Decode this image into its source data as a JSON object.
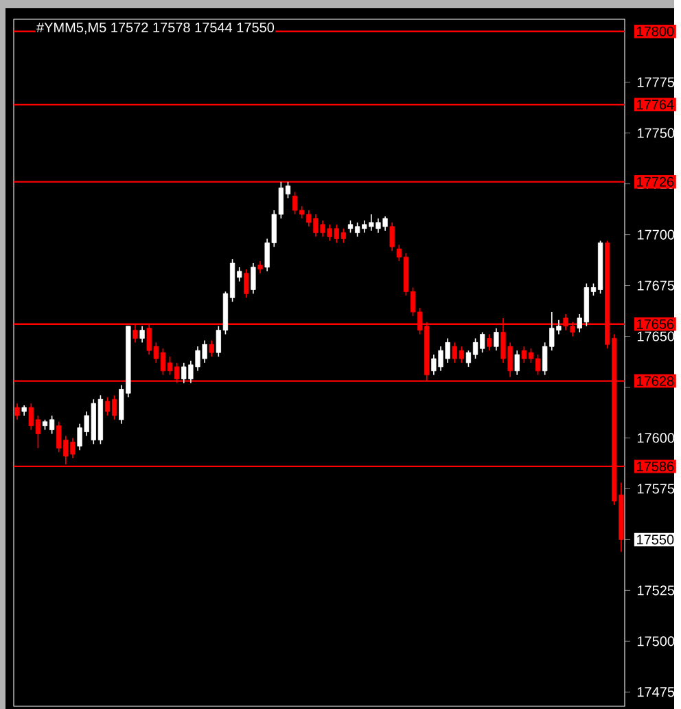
{
  "chart_data": {
    "type": "candlestick",
    "title": "#YMM5,M5  17572 17578 17544 17550",
    "categories": [
      null,
      null,
      null,
      null,
      null,
      null,
      null,
      null,
      null,
      null,
      null,
      null,
      null,
      null,
      null,
      null,
      null,
      null,
      null,
      null,
      null,
      null,
      null,
      null,
      null,
      null,
      null,
      null,
      null,
      null,
      null,
      null,
      null,
      null,
      null,
      null,
      null,
      null,
      null,
      null,
      null,
      null,
      null,
      null,
      null,
      null,
      null,
      null,
      null,
      null,
      null,
      null,
      null,
      null,
      null,
      null,
      null,
      null,
      null,
      null,
      null,
      null,
      null,
      null,
      null,
      null,
      null,
      null,
      null,
      null,
      null,
      null,
      null,
      null,
      null,
      null,
      null,
      null,
      null,
      null,
      null,
      null,
      null,
      null,
      null,
      null,
      null,
      null
    ],
    "ohlc": [
      [
        17615,
        17617,
        17609,
        17611
      ],
      [
        17613,
        17616,
        17611,
        17615
      ],
      [
        17615,
        17617,
        17604,
        17606
      ],
      [
        17609,
        17611,
        17595,
        17602
      ],
      [
        17606,
        17609,
        17604,
        17608
      ],
      [
        17604,
        17611,
        17602,
        17609
      ],
      [
        17606,
        17608,
        17593,
        17595
      ],
      [
        17599,
        17601,
        17587,
        17591
      ],
      [
        17598,
        17600,
        17590,
        17592
      ],
      [
        17596,
        17607,
        17594,
        17605
      ],
      [
        17603,
        17613,
        17601,
        17611
      ],
      [
        17599,
        17619,
        17597,
        17617
      ],
      [
        17599,
        17621,
        17597,
        17619
      ],
      [
        17618,
        17620,
        17611,
        17613
      ],
      [
        17619,
        17621,
        17609,
        17611
      ],
      [
        17609,
        17626,
        17607,
        17624
      ],
      [
        17622,
        17655,
        17620,
        17655
      ],
      [
        17653,
        17656,
        17647,
        17649
      ],
      [
        17649,
        17655,
        17647,
        17653
      ],
      [
        17654,
        17656,
        17641,
        17643
      ],
      [
        17645,
        17647,
        17637,
        17639
      ],
      [
        17642,
        17644,
        17631,
        17633
      ],
      [
        17637,
        17640,
        17631,
        17633
      ],
      [
        17635,
        17637,
        17627,
        17629
      ],
      [
        17629,
        17637,
        17627,
        17635
      ],
      [
        17629,
        17638,
        17627,
        17636
      ],
      [
        17635,
        17645,
        17633,
        17643
      ],
      [
        17639,
        17648,
        17637,
        17646
      ],
      [
        17646,
        17648,
        17640,
        17642
      ],
      [
        17642,
        17655,
        17640,
        17653
      ],
      [
        17653,
        17672,
        17651,
        17671
      ],
      [
        17669,
        17688,
        17667,
        17686
      ],
      [
        17679,
        17684,
        17677,
        17682
      ],
      [
        17681,
        17683,
        17669,
        17671
      ],
      [
        17673,
        17686,
        17671,
        17684
      ],
      [
        17685,
        17687,
        17681,
        17683
      ],
      [
        17684,
        17698,
        17682,
        17696
      ],
      [
        17696,
        17712,
        17694,
        17710
      ],
      [
        17710,
        17726,
        17708,
        17723
      ],
      [
        17720,
        17726,
        17718,
        17724
      ],
      [
        17719,
        17721,
        17710,
        17712
      ],
      [
        17712,
        17714,
        17708,
        17710
      ],
      [
        17710,
        17712,
        17704,
        17706
      ],
      [
        17708,
        17710,
        17699,
        17701
      ],
      [
        17705,
        17707,
        17699,
        17701
      ],
      [
        17703,
        17705,
        17697,
        17699
      ],
      [
        17703,
        17705,
        17696,
        17698
      ],
      [
        17701,
        17703,
        17696,
        17698
      ],
      [
        17703,
        17707,
        17701,
        17705
      ],
      [
        17701,
        17706,
        17699,
        17704
      ],
      [
        17703,
        17707,
        17701,
        17705
      ],
      [
        17704,
        17710,
        17702,
        17706
      ],
      [
        17703,
        17708,
        17701,
        17706
      ],
      [
        17704,
        17709,
        17702,
        17708
      ],
      [
        17704,
        17706,
        17692,
        17694
      ],
      [
        17693,
        17695,
        17687,
        17689
      ],
      [
        17689,
        17691,
        17670,
        17672
      ],
      [
        17672,
        17674,
        17660,
        17662
      ],
      [
        17662,
        17664,
        17651,
        17653
      ],
      [
        17655,
        17657,
        17628,
        17631
      ],
      [
        17633,
        17641,
        17631,
        17639
      ],
      [
        17635,
        17645,
        17633,
        17643
      ],
      [
        17639,
        17649,
        17637,
        17647
      ],
      [
        17645,
        17647,
        17637,
        17639
      ],
      [
        17643,
        17645,
        17637,
        17639
      ],
      [
        17637,
        17643,
        17635,
        17642
      ],
      [
        17641,
        17649,
        17639,
        17647
      ],
      [
        17644,
        17652,
        17642,
        17651
      ],
      [
        17649,
        17651,
        17643,
        17645
      ],
      [
        17645,
        17654,
        17643,
        17652
      ],
      [
        17652,
        17659,
        17637,
        17639
      ],
      [
        17645,
        17647,
        17630,
        17633
      ],
      [
        17633,
        17643,
        17631,
        17641
      ],
      [
        17643,
        17645,
        17637,
        17639
      ],
      [
        17642,
        17644,
        17637,
        17639
      ],
      [
        17639,
        17641,
        17631,
        17633
      ],
      [
        17633,
        17647,
        17631,
        17645
      ],
      [
        17645,
        17662,
        17643,
        17654
      ],
      [
        17653,
        17658,
        17651,
        17655
      ],
      [
        17659,
        17661,
        17653,
        17655
      ],
      [
        17655,
        17657,
        17650,
        17652
      ],
      [
        17654,
        17661,
        17652,
        17659
      ],
      [
        17657,
        17676,
        17655,
        17674
      ],
      [
        17672,
        17676,
        17670,
        17674
      ],
      [
        17673,
        17697,
        17671,
        17696
      ],
      [
        17696,
        17697,
        17644,
        17646
      ],
      [
        17649,
        17651,
        17567,
        17569
      ],
      [
        17572,
        17578,
        17544,
        17550
      ]
    ],
    "ylim": [
      17468,
      17806
    ],
    "yticks": [
      17475,
      17500,
      17525,
      17550,
      17575,
      17600,
      {
        "value": 17625,
        "label": null
      },
      17650,
      17675,
      17700,
      17725,
      17750,
      17775
    ],
    "tick_labels": "y",
    "ref_lines": [
      {
        "axis": "y",
        "value": 17800,
        "label": "17800",
        "color": "#ff0000"
      },
      {
        "axis": "y",
        "value": 17764,
        "label": "17764",
        "color": "#ff0000"
      },
      {
        "axis": "y",
        "value": 17726,
        "label": "17726",
        "color": "#ff0000"
      },
      {
        "axis": "y",
        "value": 17656,
        "label": "17656",
        "color": "#ff0000"
      },
      {
        "axis": "y",
        "value": 17628,
        "label": "17628",
        "color": "#ff0000"
      },
      {
        "axis": "y",
        "value": 17586,
        "label": "17586",
        "color": "#ff0000"
      }
    ],
    "annotations": [
      "17550"
    ]
  }
}
